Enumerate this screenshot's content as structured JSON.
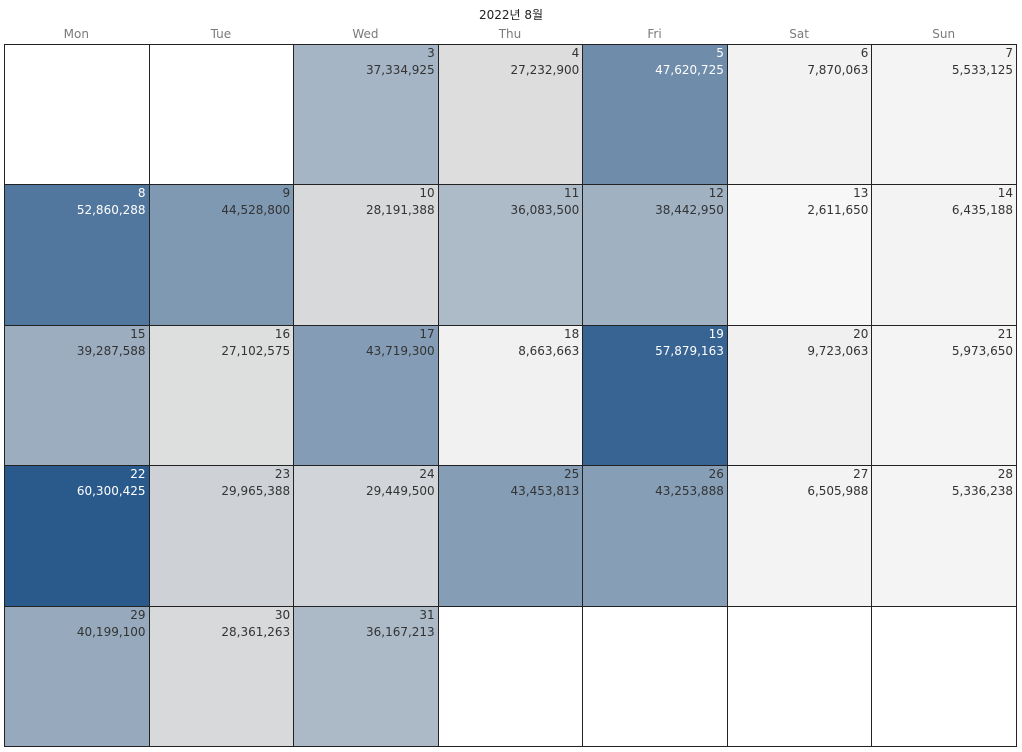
{
  "chart_data": {
    "type": "heatmap",
    "title": "2022년 8월",
    "weekdays": [
      "Mon",
      "Tue",
      "Wed",
      "Thu",
      "Fri",
      "Sat",
      "Sun"
    ],
    "first_weekday_index": 2,
    "color_scale": {
      "low": "#f7f7f7",
      "mid": "#dedede",
      "high": "#2a5a8c"
    },
    "days": [
      {
        "day": 3,
        "value": 37334925
      },
      {
        "day": 4,
        "value": 27232900
      },
      {
        "day": 5,
        "value": 47620725
      },
      {
        "day": 6,
        "value": 7870063
      },
      {
        "day": 7,
        "value": 5533125
      },
      {
        "day": 8,
        "value": 52860288
      },
      {
        "day": 9,
        "value": 44528800
      },
      {
        "day": 10,
        "value": 28191388
      },
      {
        "day": 11,
        "value": 36083500
      },
      {
        "day": 12,
        "value": 38442950
      },
      {
        "day": 13,
        "value": 2611650
      },
      {
        "day": 14,
        "value": 6435188
      },
      {
        "day": 15,
        "value": 39287588
      },
      {
        "day": 16,
        "value": 27102575
      },
      {
        "day": 17,
        "value": 43719300
      },
      {
        "day": 18,
        "value": 8663663
      },
      {
        "day": 19,
        "value": 57879163
      },
      {
        "day": 20,
        "value": 9723063
      },
      {
        "day": 21,
        "value": 5973650
      },
      {
        "day": 22,
        "value": 60300425
      },
      {
        "day": 23,
        "value": 29965388
      },
      {
        "day": 24,
        "value": 29449500
      },
      {
        "day": 25,
        "value": 43453813
      },
      {
        "day": 26,
        "value": 43253888
      },
      {
        "day": 27,
        "value": 6505988
      },
      {
        "day": 28,
        "value": 5336238
      },
      {
        "day": 29,
        "value": 40199100
      },
      {
        "day": 30,
        "value": 28361263
      },
      {
        "day": 31,
        "value": 36167213
      }
    ]
  }
}
